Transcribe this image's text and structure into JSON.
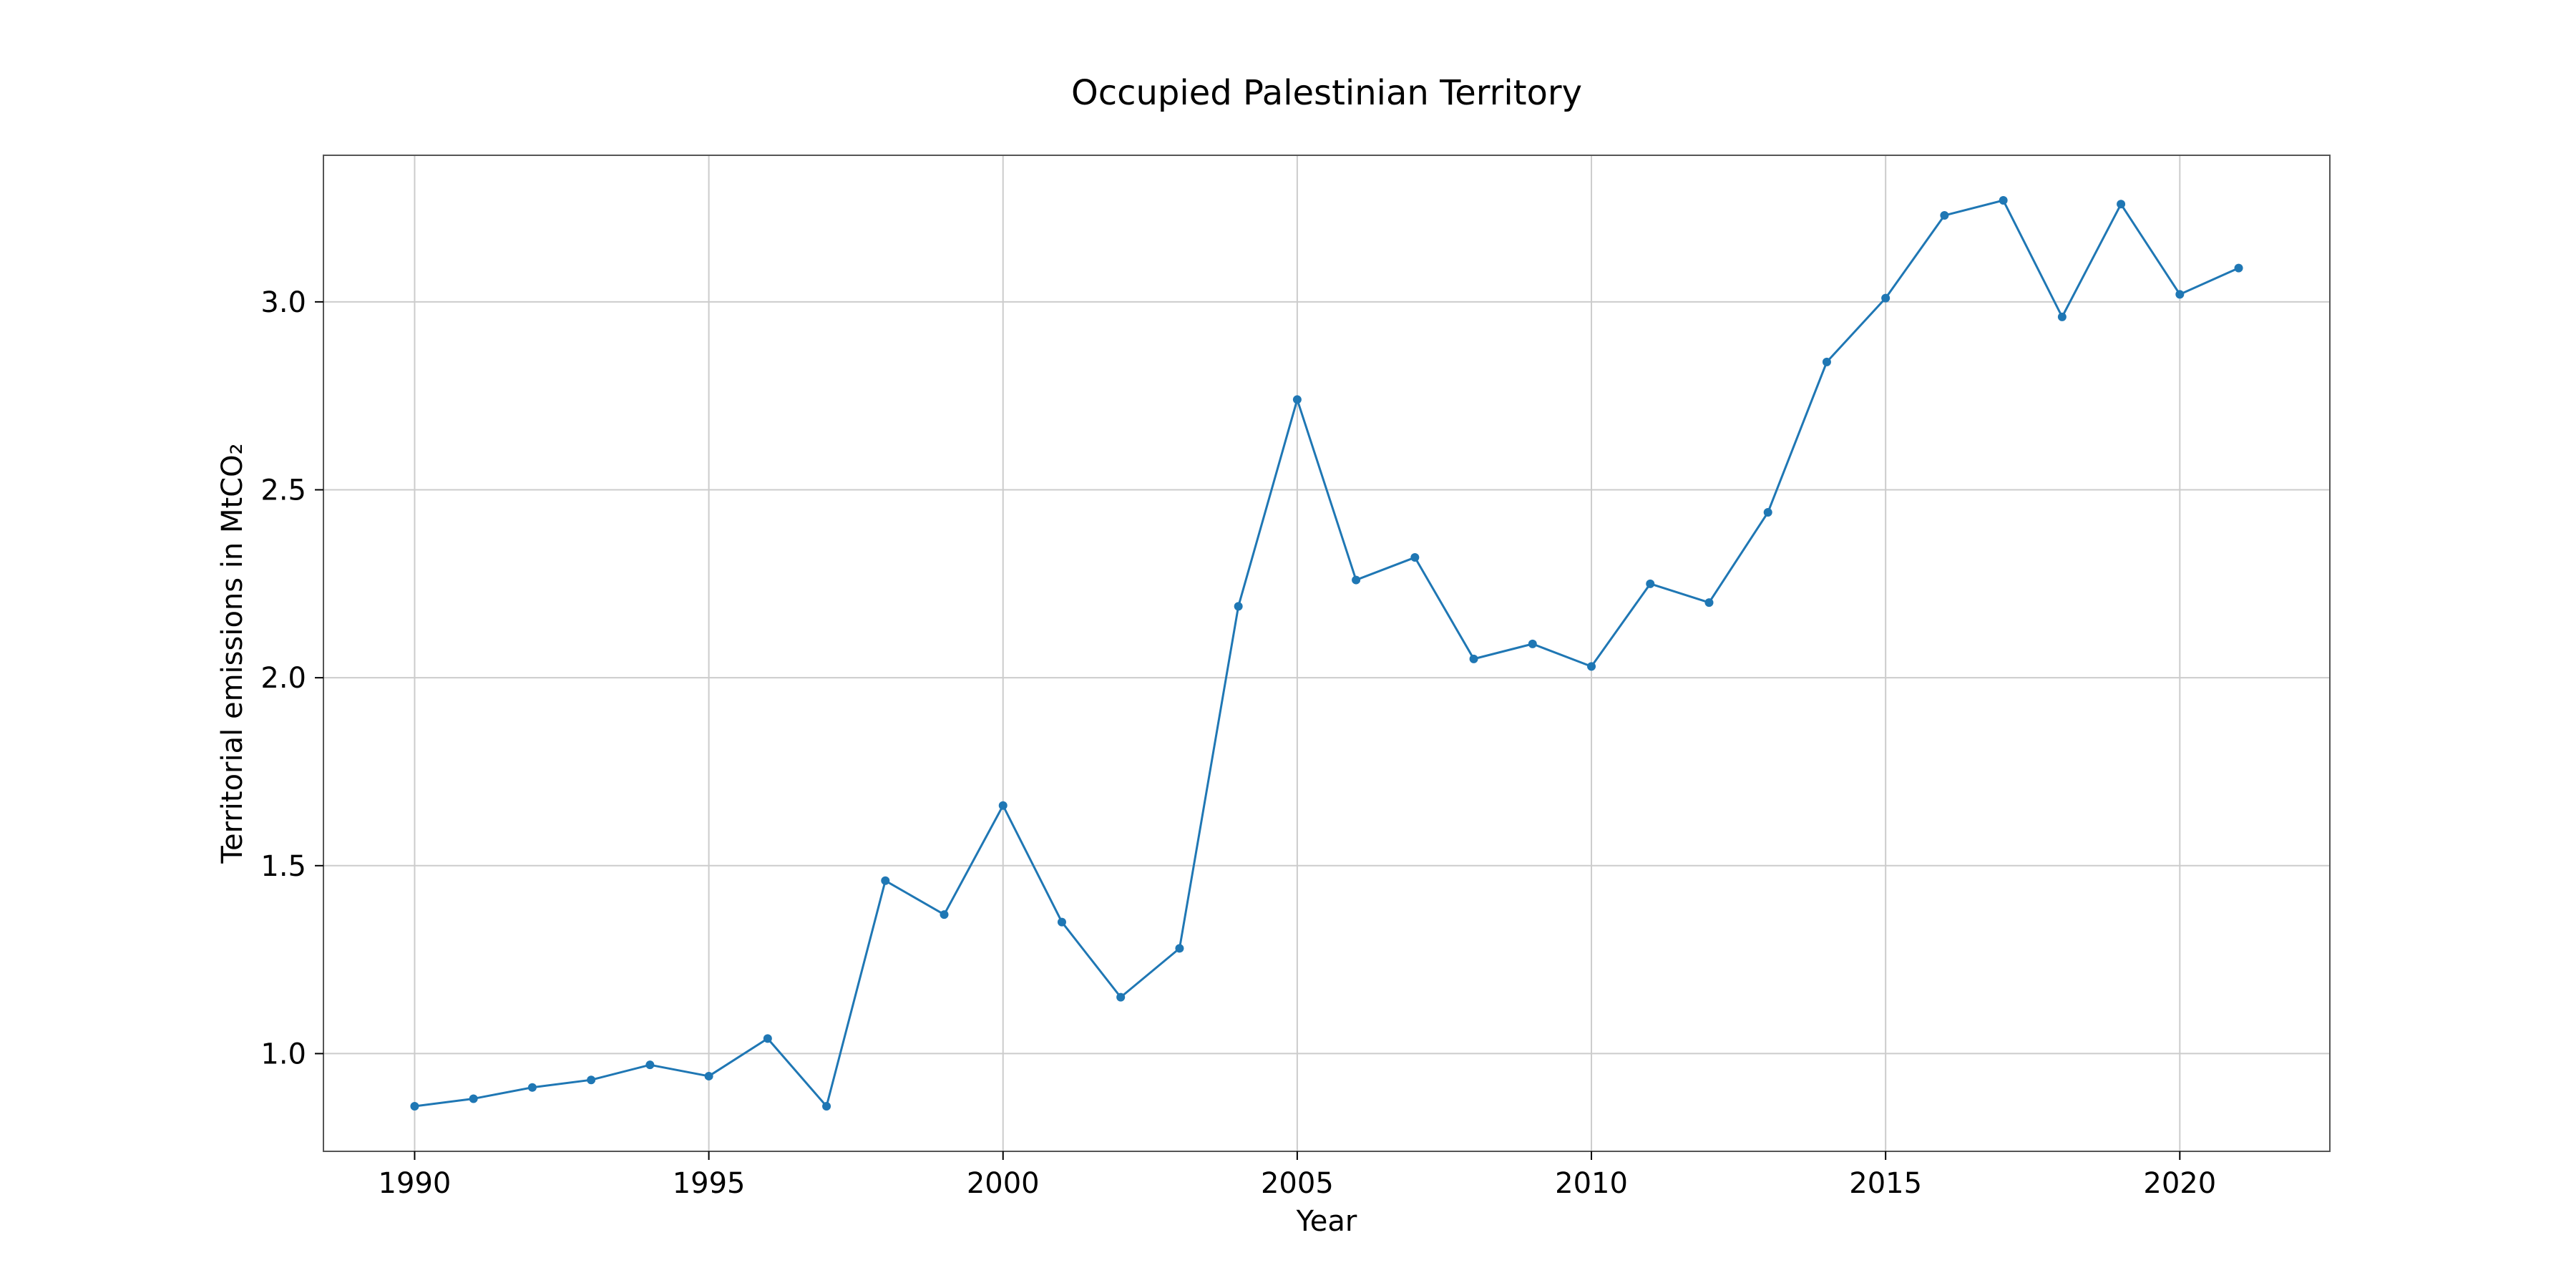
{
  "chart_data": {
    "type": "line",
    "title": "Occupied Palestinian Territory",
    "xlabel": "Year",
    "ylabel": "Territorial emissions in MtCO₂",
    "xlim": [
      1988.45,
      2022.55
    ],
    "ylim": [
      0.74,
      3.39
    ],
    "xticks": [
      1990,
      1995,
      2000,
      2005,
      2010,
      2015,
      2020
    ],
    "yticks": [
      1.0,
      1.5,
      2.0,
      2.5,
      3.0
    ],
    "ytick_labels": [
      "1.0",
      "1.5",
      "2.0",
      "2.5",
      "3.0"
    ],
    "grid": true,
    "legend": "none",
    "color": "#1f77b4",
    "series": [
      {
        "x": [
          1990,
          1991,
          1992,
          1993,
          1994,
          1995,
          1996,
          1997,
          1998,
          1999,
          2000,
          2001,
          2002,
          2003,
          2004,
          2005,
          2006,
          2007,
          2008,
          2009,
          2010,
          2011,
          2012,
          2013,
          2014,
          2015,
          2016,
          2017,
          2018,
          2019,
          2020,
          2021
        ],
        "values": [
          0.86,
          0.88,
          0.91,
          0.93,
          0.97,
          0.94,
          1.04,
          0.86,
          1.46,
          1.37,
          1.66,
          1.35,
          1.15,
          1.28,
          2.19,
          2.74,
          2.26,
          2.32,
          2.05,
          2.09,
          2.03,
          2.25,
          2.2,
          2.44,
          2.84,
          3.01,
          3.23,
          3.27,
          2.96,
          3.26,
          3.02,
          3.09
        ]
      }
    ]
  }
}
